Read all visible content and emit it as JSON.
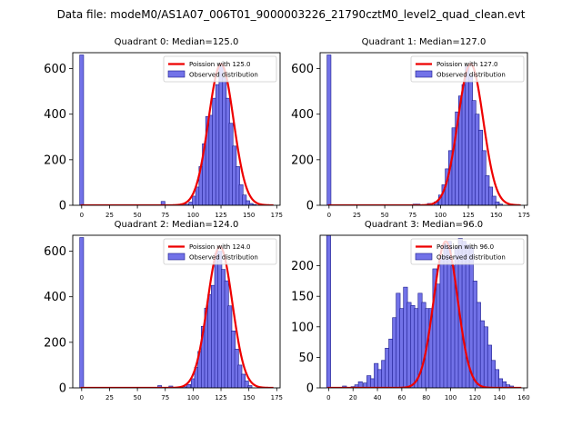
{
  "chart_data": {
    "suptitle": "Data file: modeM0/AS1A07_006T01_9000003226_21790cztM0_level2_quad_clean.evt",
    "colors": {
      "bar_fill": "#7272e8",
      "bar_edge": "#1a1a8c",
      "line": "#ee0000"
    },
    "panels": [
      {
        "type": "bar",
        "title": "Quadrant 0: Median=125.0",
        "median": 125.0,
        "xlim": [
          -8,
          178
        ],
        "ylim": [
          0,
          670
        ],
        "xticks": [
          0,
          25,
          50,
          75,
          100,
          125,
          150,
          175
        ],
        "yticks": [
          0,
          200,
          400,
          600
        ],
        "bin_width": 3.5,
        "bins": [
          [
            0,
            660
          ],
          [
            73,
            17
          ],
          [
            94,
            5
          ],
          [
            98,
            14
          ],
          [
            101,
            40
          ],
          [
            104,
            80
          ],
          [
            107,
            170
          ],
          [
            110,
            270
          ],
          [
            113,
            390
          ],
          [
            116,
            395
          ],
          [
            119,
            470
          ],
          [
            122,
            530
          ],
          [
            125,
            610
          ],
          [
            128,
            560
          ],
          [
            131,
            470
          ],
          [
            134,
            360
          ],
          [
            137,
            260
          ],
          [
            140,
            170
          ],
          [
            143,
            90
          ],
          [
            146,
            45
          ],
          [
            149,
            20
          ],
          [
            152,
            8
          ],
          [
            155,
            3
          ]
        ],
        "poisson": {
          "mean": 125.0,
          "peak": 620,
          "sigma": 11.2,
          "x_range": [
            -1,
            172
          ]
        },
        "legend": [
          "Poission with 125.0",
          "Observed distribution"
        ]
      },
      {
        "type": "bar",
        "title": "Quadrant 1: Median=127.0",
        "median": 127.0,
        "xlim": [
          -8,
          178
        ],
        "ylim": [
          0,
          670
        ],
        "xticks": [
          0,
          25,
          50,
          75,
          100,
          125,
          150,
          175
        ],
        "yticks": [
          0,
          200,
          400,
          600
        ],
        "bin_width": 3.5,
        "bins": [
          [
            0,
            660
          ],
          [
            77,
            5
          ],
          [
            80,
            5
          ],
          [
            90,
            8
          ],
          [
            96,
            15
          ],
          [
            100,
            45
          ],
          [
            103,
            90
          ],
          [
            106,
            160
          ],
          [
            109,
            240
          ],
          [
            112,
            340
          ],
          [
            115,
            410
          ],
          [
            118,
            480
          ],
          [
            121,
            530
          ],
          [
            124,
            610
          ],
          [
            127,
            570
          ],
          [
            130,
            460
          ],
          [
            133,
            400
          ],
          [
            136,
            330
          ],
          [
            139,
            240
          ],
          [
            142,
            130
          ],
          [
            145,
            80
          ],
          [
            148,
            40
          ],
          [
            151,
            15
          ],
          [
            154,
            5
          ]
        ],
        "poisson": {
          "mean": 127.0,
          "peak": 620,
          "sigma": 11.3,
          "x_range": [
            -1,
            172
          ]
        },
        "legend": [
          "Poission with 127.0",
          "Observed distribution"
        ]
      },
      {
        "type": "bar",
        "title": "Quadrant 2: Median=124.0",
        "median": 124.0,
        "xlim": [
          -8,
          178
        ],
        "ylim": [
          0,
          670
        ],
        "xticks": [
          0,
          25,
          50,
          75,
          100,
          125,
          150,
          175
        ],
        "yticks": [
          0,
          200,
          400,
          600
        ],
        "bin_width": 3.5,
        "bins": [
          [
            0,
            660
          ],
          [
            70,
            10
          ],
          [
            80,
            8
          ],
          [
            92,
            5
          ],
          [
            96,
            15
          ],
          [
            100,
            40
          ],
          [
            103,
            90
          ],
          [
            106,
            160
          ],
          [
            109,
            270
          ],
          [
            112,
            350
          ],
          [
            115,
            410
          ],
          [
            118,
            450
          ],
          [
            121,
            590
          ],
          [
            124,
            600
          ],
          [
            127,
            520
          ],
          [
            130,
            470
          ],
          [
            133,
            360
          ],
          [
            136,
            250
          ],
          [
            139,
            170
          ],
          [
            142,
            100
          ],
          [
            145,
            60
          ],
          [
            148,
            30
          ],
          [
            151,
            10
          ]
        ],
        "poisson": {
          "mean": 124.0,
          "peak": 620,
          "sigma": 11.1,
          "x_range": [
            -1,
            172
          ]
        },
        "legend": [
          "Poission with 124.0",
          "Observed distribution"
        ]
      },
      {
        "type": "bar",
        "title": "Quadrant 3: Median=96.0",
        "median": 96.0,
        "xlim": [
          -7,
          163
        ],
        "ylim": [
          0,
          250
        ],
        "xticks": [
          0,
          20,
          40,
          60,
          80,
          100,
          120,
          140,
          160
        ],
        "yticks": [
          0,
          50,
          100,
          150,
          200
        ],
        "bin_width": 3.3,
        "bins": [
          [
            0,
            250
          ],
          [
            13,
            3
          ],
          [
            20,
            2
          ],
          [
            23,
            5
          ],
          [
            26,
            10
          ],
          [
            30,
            8
          ],
          [
            33,
            20
          ],
          [
            36,
            15
          ],
          [
            39,
            40
          ],
          [
            42,
            30
          ],
          [
            45,
            45
          ],
          [
            48,
            65
          ],
          [
            51,
            80
          ],
          [
            54,
            115
          ],
          [
            57,
            155
          ],
          [
            60,
            130
          ],
          [
            63,
            165
          ],
          [
            66,
            140
          ],
          [
            69,
            135
          ],
          [
            72,
            130
          ],
          [
            75,
            155
          ],
          [
            78,
            140
          ],
          [
            81,
            130
          ],
          [
            84,
            130
          ],
          [
            87,
            195
          ],
          [
            90,
            170
          ],
          [
            93,
            215
          ],
          [
            96,
            235
          ],
          [
            99,
            240
          ],
          [
            102,
            200
          ],
          [
            105,
            230
          ],
          [
            108,
            245
          ],
          [
            111,
            240
          ],
          [
            114,
            235
          ],
          [
            117,
            230
          ],
          [
            120,
            175
          ],
          [
            123,
            140
          ],
          [
            126,
            110
          ],
          [
            129,
            100
          ],
          [
            132,
            70
          ],
          [
            135,
            45
          ],
          [
            138,
            30
          ],
          [
            141,
            15
          ],
          [
            144,
            10
          ],
          [
            147,
            5
          ],
          [
            150,
            3
          ]
        ],
        "poisson": {
          "mean": 96.0,
          "peak": 240,
          "sigma": 9.8,
          "x_range": [
            -1,
            158
          ]
        },
        "legend": [
          "Poission with 96.0",
          "Observed distribution"
        ]
      }
    ]
  }
}
